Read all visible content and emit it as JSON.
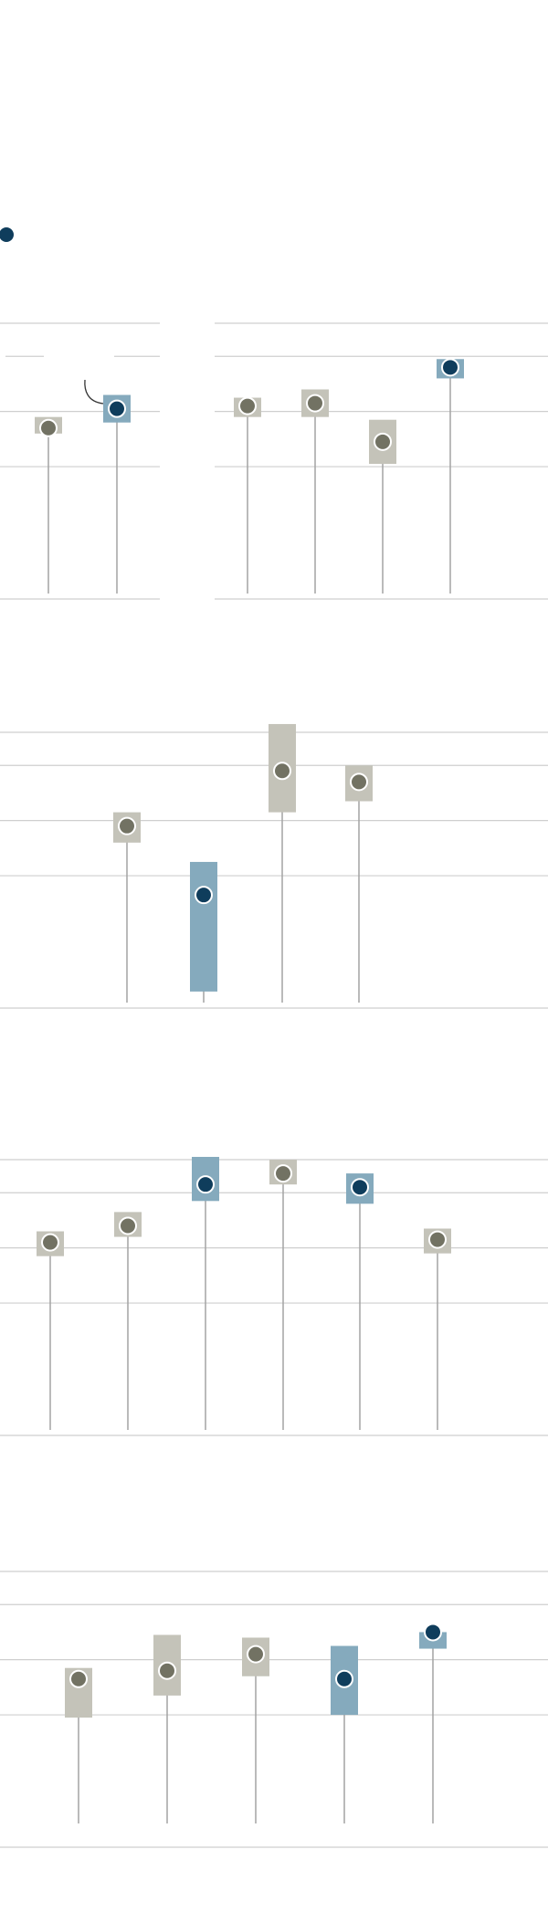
{
  "colors": {
    "grid": "#cfcfcf",
    "stem": "#a3a3a3",
    "range_neutral": "#c4c3b9",
    "range_highlight": "#85aabd",
    "dot_neutral": "#727263",
    "dot_highlight": "#0f3d5c",
    "legend_dot": "#0f3d5c"
  },
  "chart_data": [
    {
      "type": "dot-range",
      "title": "",
      "xlabel": "",
      "ylabel": "",
      "ylim": [
        0,
        100
      ],
      "gridlines": [
        100,
        88,
        68,
        48
      ],
      "series": [
        {
          "value": 62,
          "low": 60,
          "high": 66,
          "highlight": false
        },
        {
          "value": 69,
          "low": 64,
          "high": 74,
          "highlight": true
        }
      ]
    },
    {
      "type": "dot-range",
      "title": "",
      "xlabel": "",
      "ylabel": "",
      "ylim": [
        0,
        100
      ],
      "gridlines": [
        100,
        88,
        68,
        48
      ],
      "series": [
        {
          "value": 70,
          "low": 66,
          "high": 73,
          "highlight": false
        },
        {
          "value": 71,
          "low": 66,
          "high": 76,
          "highlight": false
        },
        {
          "value": 57,
          "low": 49,
          "high": 65,
          "highlight": false
        },
        {
          "value": 84,
          "low": 80,
          "high": 87,
          "highlight": true
        }
      ]
    },
    {
      "type": "dot-range",
      "title": "",
      "xlabel": "",
      "ylabel": "",
      "ylim": [
        0,
        100
      ],
      "gridlines": [
        100,
        88,
        68,
        48
      ],
      "series": [
        {
          "value": 66,
          "low": 60,
          "high": 71,
          "highlight": false
        },
        {
          "value": 41,
          "low": 6,
          "high": 53,
          "highlight": true
        },
        {
          "value": 86,
          "low": 71,
          "high": 103,
          "highlight": false
        },
        {
          "value": 82,
          "low": 75,
          "high": 88,
          "highlight": false
        }
      ]
    },
    {
      "type": "dot-range",
      "title": "",
      "xlabel": "",
      "ylabel": "",
      "ylim": [
        0,
        100
      ],
      "gridlines": [
        100,
        88,
        68,
        48
      ],
      "series": [
        {
          "value": 70,
          "low": 65,
          "high": 74,
          "highlight": false
        },
        {
          "value": 76,
          "low": 72,
          "high": 81,
          "highlight": false
        },
        {
          "value": 91,
          "low": 85,
          "high": 101,
          "highlight": true
        },
        {
          "value": 95,
          "low": 91,
          "high": 100,
          "highlight": false
        },
        {
          "value": 90,
          "low": 84,
          "high": 95,
          "highlight": true
        },
        {
          "value": 71,
          "low": 66,
          "high": 75,
          "highlight": false
        }
      ]
    },
    {
      "type": "dot-range",
      "title": "",
      "xlabel": "",
      "ylabel": "",
      "ylim": [
        0,
        100
      ],
      "gridlines": [
        100,
        88,
        68,
        48
      ],
      "series": [
        {
          "value": 61,
          "low": 47,
          "high": 65,
          "highlight": false
        },
        {
          "value": 64,
          "low": 55,
          "high": 77,
          "highlight": false
        },
        {
          "value": 70,
          "low": 62,
          "high": 76,
          "highlight": false
        },
        {
          "value": 61,
          "low": 48,
          "high": 73,
          "highlight": true
        },
        {
          "value": 78,
          "low": 72,
          "high": 78,
          "highlight": true
        }
      ]
    }
  ]
}
